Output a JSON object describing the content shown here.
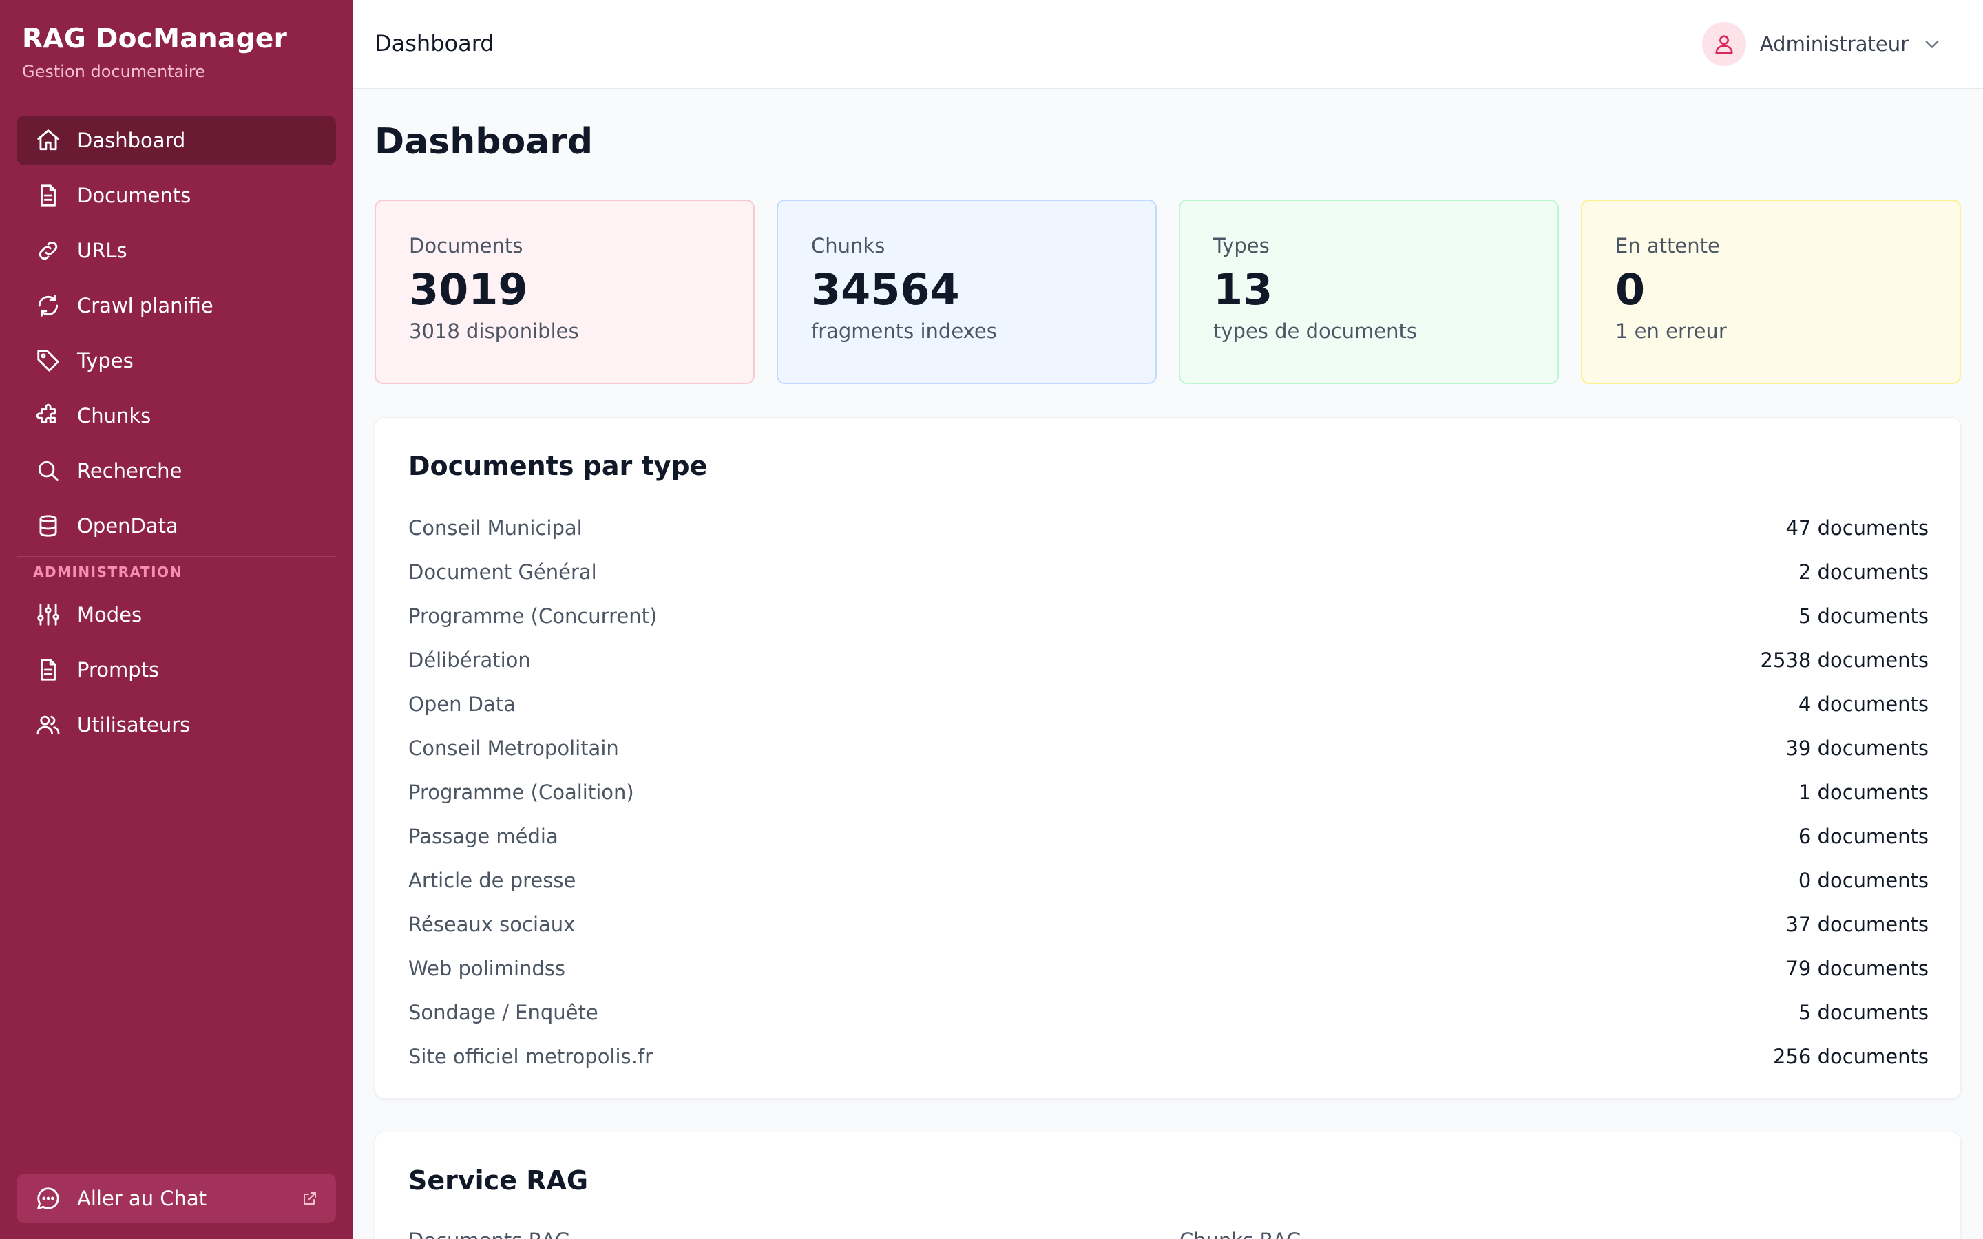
{
  "brand": {
    "title": "RAG DocManager",
    "subtitle": "Gestion documentaire"
  },
  "nav": {
    "items": [
      {
        "label": "Dashboard",
        "icon": "home-icon",
        "active": true
      },
      {
        "label": "Documents",
        "icon": "file-icon"
      },
      {
        "label": "URLs",
        "icon": "link-icon"
      },
      {
        "label": "Crawl planifie",
        "icon": "refresh-icon"
      },
      {
        "label": "Types",
        "icon": "tag-icon"
      },
      {
        "label": "Chunks",
        "icon": "puzzle-icon"
      },
      {
        "label": "Recherche",
        "icon": "search-icon"
      },
      {
        "label": "OpenData",
        "icon": "database-icon"
      }
    ],
    "admin_section": "ADMINISTRATION",
    "admin_items": [
      {
        "label": "Modes",
        "icon": "sliders-icon"
      },
      {
        "label": "Prompts",
        "icon": "file-icon"
      },
      {
        "label": "Utilisateurs",
        "icon": "users-icon"
      }
    ],
    "footer": {
      "label": "Aller au Chat",
      "icon": "chat-icon"
    }
  },
  "header": {
    "title": "Dashboard",
    "user": "Administrateur"
  },
  "page": {
    "title": "Dashboard"
  },
  "stats": [
    {
      "label": "Documents",
      "value": "3019",
      "sub": "3018 disponibles",
      "bg": "#fef2f4",
      "border": "#f9c9d3"
    },
    {
      "label": "Chunks",
      "value": "34564",
      "sub": "fragments indexes",
      "bg": "#eff6ff",
      "border": "#bfdbfe"
    },
    {
      "label": "Types",
      "value": "13",
      "sub": "types de documents",
      "bg": "#f0fdf4",
      "border": "#bbf7d0"
    },
    {
      "label": "En attente",
      "value": "0",
      "sub": "1 en erreur",
      "bg": "#fefce8",
      "border": "#fef08a"
    }
  ],
  "doc_types": {
    "title": "Documents par type",
    "rows": [
      {
        "name": "Conseil Municipal",
        "count": "47 documents"
      },
      {
        "name": "Document Général",
        "count": "2 documents"
      },
      {
        "name": "Programme (Concurrent)",
        "count": "5 documents"
      },
      {
        "name": "Délibération",
        "count": "2538 documents"
      },
      {
        "name": "Open Data",
        "count": "4 documents"
      },
      {
        "name": "Conseil Metropolitain",
        "count": "39 documents"
      },
      {
        "name": "Programme (Coalition)",
        "count": "1 documents"
      },
      {
        "name": "Passage média",
        "count": "6 documents"
      },
      {
        "name": "Article de presse",
        "count": "0 documents"
      },
      {
        "name": "Réseaux sociaux",
        "count": "37 documents"
      },
      {
        "name": "Web polimindss",
        "count": "79 documents"
      },
      {
        "name": "Sondage / Enquête",
        "count": "5 documents"
      },
      {
        "name": "Site officiel metropolis.fr",
        "count": "256 documents"
      }
    ]
  },
  "service": {
    "title": "Service RAG",
    "left_label": "Documents RAG",
    "right_label": "Chunks RAG"
  }
}
